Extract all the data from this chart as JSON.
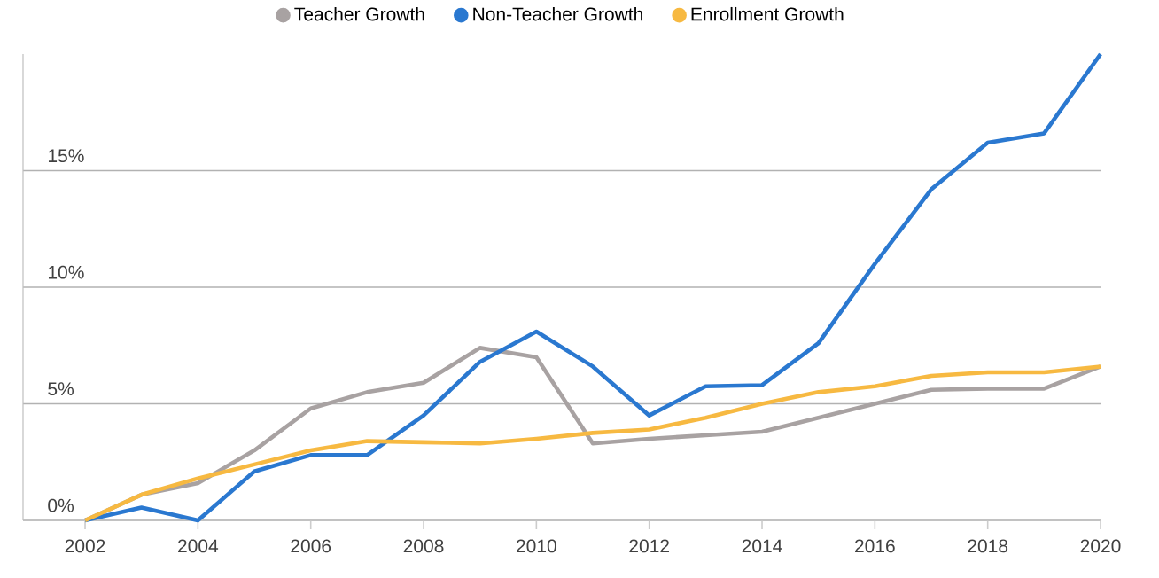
{
  "chart_data": {
    "type": "line",
    "x": [
      2002,
      2003,
      2004,
      2005,
      2006,
      2007,
      2008,
      2009,
      2010,
      2011,
      2012,
      2013,
      2014,
      2015,
      2016,
      2017,
      2018,
      2019,
      2020
    ],
    "series": [
      {
        "name": "Teacher Growth",
        "color": "#a8a2a2",
        "values": [
          0,
          1.1,
          1.6,
          3.0,
          4.8,
          5.5,
          5.9,
          7.4,
          7.0,
          3.3,
          3.5,
          3.65,
          3.8,
          4.4,
          5.0,
          5.6,
          5.65,
          5.65,
          6.6
        ]
      },
      {
        "name": "Non-Teacher Growth",
        "color": "#2a78d0",
        "values": [
          0,
          0.55,
          0,
          2.1,
          2.8,
          2.8,
          4.5,
          6.8,
          8.1,
          6.6,
          4.5,
          5.75,
          5.8,
          7.6,
          11.0,
          14.2,
          16.2,
          16.6,
          20.0
        ]
      },
      {
        "name": "Enrollment Growth",
        "color": "#f7b941",
        "values": [
          0,
          1.1,
          1.8,
          2.4,
          3.0,
          3.4,
          3.35,
          3.3,
          3.5,
          3.75,
          3.9,
          4.4,
          5.0,
          5.5,
          5.75,
          6.2,
          6.35,
          6.35,
          6.6
        ]
      }
    ],
    "xlim": [
      2000.9,
      2020
    ],
    "ylim": [
      0,
      20
    ],
    "xticks": [
      2002,
      2004,
      2006,
      2008,
      2010,
      2012,
      2014,
      2016,
      2018,
      2020
    ],
    "yticks": [
      {
        "value": 0,
        "label": "0%"
      },
      {
        "value": 5,
        "label": "5%"
      },
      {
        "value": 10,
        "label": "10%"
      },
      {
        "value": 15,
        "label": "15%"
      }
    ],
    "grid": "y",
    "legend": "top",
    "marker": "none",
    "line_style": "solid"
  }
}
